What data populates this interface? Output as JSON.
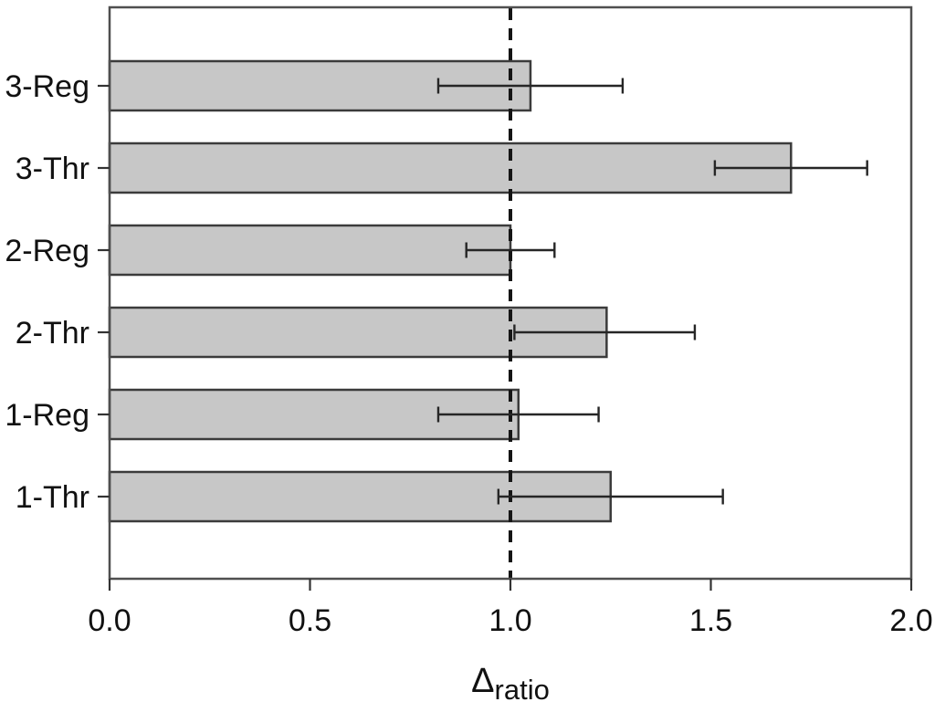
{
  "chart_data": {
    "type": "bar",
    "orientation": "horizontal",
    "title": "",
    "xlabel_main": "Δ",
    "xlabel_sub": "ratio",
    "ylabel": "",
    "xlim": [
      0.0,
      2.0
    ],
    "xtick_values": [
      0.0,
      0.5,
      1.0,
      1.5,
      2.0
    ],
    "xtick_labels": [
      "0.0",
      "0.5",
      "1.0",
      "1.5",
      "2.0"
    ],
    "categories": [
      "3-Reg",
      "3-Thr",
      "2-Reg",
      "2-Thr",
      "1-Reg",
      "1-Thr"
    ],
    "series": [
      {
        "name": "delta-ratio",
        "values": [
          1.05,
          1.7,
          1.0,
          1.24,
          1.02,
          1.25
        ],
        "error_low": [
          0.82,
          1.51,
          0.89,
          1.01,
          0.82,
          0.97
        ],
        "error_high": [
          1.28,
          1.89,
          1.11,
          1.46,
          1.22,
          1.53
        ]
      }
    ],
    "reference_line": {
      "x": 1.0,
      "style": "dashed"
    },
    "grid": false,
    "legend_position": "none",
    "colors": {
      "background": "#ffffff",
      "bar_fill": "#c7c7c7",
      "bar_stroke": "#3b3b3b",
      "error_bar": "#262626",
      "axis": "#4f4f4f",
      "tick": "#333333",
      "text": "#111111",
      "reference_line": "#151515"
    }
  }
}
